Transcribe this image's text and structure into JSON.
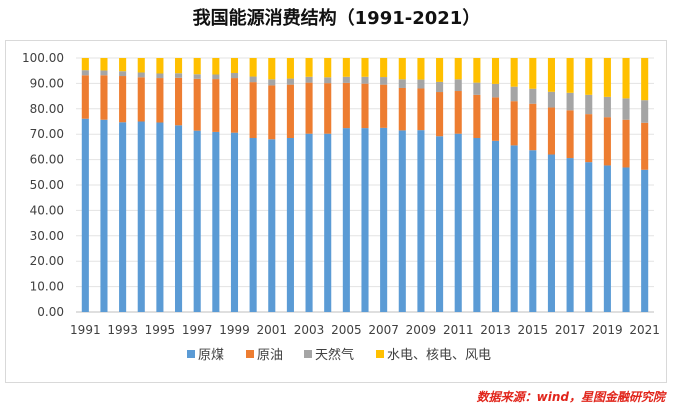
{
  "title": "我国能源消费结构（1991-2021）",
  "source": "数据来源：wind，星图金融研究院",
  "chart_data": {
    "type": "bar",
    "stacked": true,
    "title": "我国能源消费结构（1991-2021）",
    "xlabel": "",
    "ylabel": "",
    "ylim": [
      0,
      100
    ],
    "yticks": [
      "0.00",
      "10.00",
      "20.00",
      "30.00",
      "40.00",
      "50.00",
      "60.00",
      "70.00",
      "80.00",
      "90.00",
      "100.00"
    ],
    "categories": [
      "1991",
      "1992",
      "1993",
      "1994",
      "1995",
      "1996",
      "1997",
      "1998",
      "1999",
      "2000",
      "2001",
      "2002",
      "2003",
      "2004",
      "2005",
      "2006",
      "2007",
      "2008",
      "2009",
      "2010",
      "2011",
      "2012",
      "2013",
      "2014",
      "2015",
      "2016",
      "2017",
      "2018",
      "2019",
      "2020",
      "2021"
    ],
    "legend_position": "bottom",
    "series": [
      {
        "name": "原煤",
        "color": "#5b9bd5",
        "values": [
          76.1,
          75.7,
          74.7,
          75.0,
          74.6,
          73.5,
          71.4,
          70.9,
          70.6,
          68.5,
          68.0,
          68.5,
          70.2,
          70.2,
          72.4,
          72.4,
          72.5,
          71.5,
          71.6,
          69.2,
          70.2,
          68.5,
          67.4,
          65.6,
          63.7,
          62.0,
          60.6,
          59.0,
          57.7,
          56.9,
          56.0
        ]
      },
      {
        "name": "原油",
        "color": "#ed7d31",
        "values": [
          17.1,
          17.5,
          18.2,
          17.4,
          17.5,
          18.7,
          20.4,
          20.8,
          21.5,
          22.0,
          21.2,
          21.0,
          20.1,
          19.9,
          17.8,
          17.5,
          17.0,
          16.7,
          16.4,
          17.4,
          16.8,
          17.0,
          17.1,
          17.4,
          18.3,
          18.5,
          18.8,
          18.9,
          19.0,
          18.8,
          18.5
        ]
      },
      {
        "name": "天然气",
        "color": "#a5a5a5",
        "values": [
          2.0,
          1.9,
          1.9,
          1.9,
          1.8,
          1.8,
          1.8,
          1.8,
          2.0,
          2.2,
          2.4,
          2.4,
          2.3,
          2.3,
          2.4,
          2.7,
          3.0,
          3.4,
          3.5,
          4.0,
          4.6,
          4.8,
          5.3,
          5.7,
          5.9,
          6.2,
          6.9,
          7.6,
          8.0,
          8.4,
          8.9
        ]
      },
      {
        "name": "水电、核电、风电",
        "color": "#ffc000",
        "values": [
          4.8,
          4.9,
          5.2,
          5.7,
          6.1,
          6.0,
          6.4,
          6.5,
          5.9,
          7.3,
          8.4,
          8.1,
          7.4,
          7.6,
          7.4,
          7.4,
          7.5,
          8.4,
          8.5,
          9.4,
          8.4,
          9.7,
          10.2,
          11.3,
          12.1,
          13.3,
          13.7,
          14.5,
          15.3,
          15.9,
          16.6
        ]
      }
    ]
  }
}
